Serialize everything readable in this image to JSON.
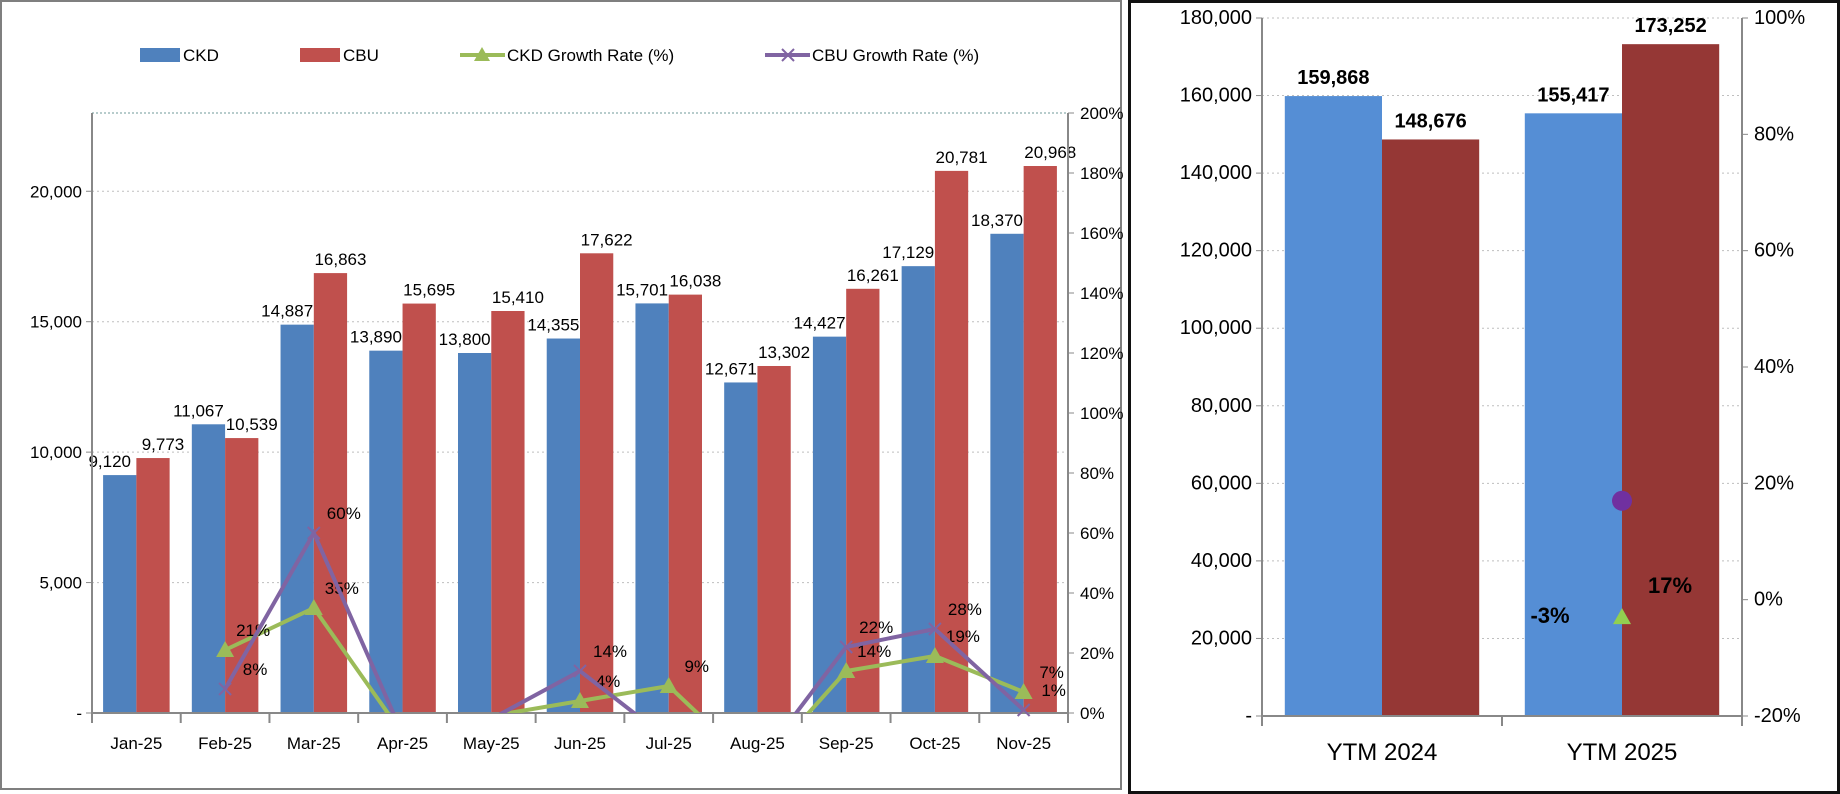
{
  "chart_data": [
    {
      "type": "bar",
      "categories": [
        "Jan-25",
        "Feb-25",
        "Mar-25",
        "Apr-25",
        "May-25",
        "Jun-25",
        "Jul-25",
        "Aug-25",
        "Sep-25",
        "Oct-25",
        "Nov-25"
      ],
      "series": [
        {
          "name": "CKD",
          "kind": "bar",
          "axis": "left",
          "color": "#4F81BD",
          "values": [
            9120,
            11067,
            14887,
            13890,
            13800,
            14355,
            15701,
            12671,
            14427,
            17129,
            18370
          ],
          "labels": [
            "9,120",
            "11,067",
            "14,887",
            "13,890",
            "13,800",
            "14,355",
            "15,701",
            "12,671",
            "14,427",
            "17,129",
            "18,370"
          ]
        },
        {
          "name": "CBU",
          "kind": "bar",
          "axis": "left",
          "color": "#C0504D",
          "values": [
            9773,
            10539,
            16863,
            15695,
            15410,
            17622,
            16038,
            13302,
            16261,
            20781,
            20968
          ],
          "labels": [
            "9,773",
            "10,539",
            "16,863",
            "15,695",
            "15,410",
            "17,622",
            "16,038",
            "13,302",
            "16,261",
            "20,781",
            "20,968"
          ]
        },
        {
          "name": "CKD Growth Rate (%)",
          "kind": "line",
          "axis": "right",
          "color": "#9BBB59",
          "marker": "triangle",
          "values": [
            null,
            21,
            35,
            -7,
            -1,
            4,
            9,
            -19,
            14,
            19,
            7
          ],
          "labels": [
            "",
            "21%",
            "35%",
            "",
            "",
            "4%",
            "9%",
            "",
            "14%",
            "19%",
            "7%"
          ]
        },
        {
          "name": "CBU Growth Rate (%)",
          "kind": "line",
          "axis": "right",
          "color": "#8064A2",
          "marker": "x",
          "values": [
            null,
            8,
            60,
            -7,
            -2,
            14,
            -9,
            -17,
            22,
            28,
            1
          ],
          "labels": [
            "",
            "8%",
            "60%",
            "",
            "",
            "14%",
            "",
            "",
            "22%",
            "28%",
            "1%"
          ]
        }
      ],
      "left_axis": {
        "ylim": [
          0,
          23000
        ],
        "ticks": [
          0,
          5000,
          10000,
          15000,
          20000
        ],
        "tick_labels": [
          "-",
          "5,000",
          "10,000",
          "15,000",
          "20,000"
        ]
      },
      "right_axis": {
        "ylim": [
          0,
          200
        ],
        "ticks": [
          0,
          20,
          40,
          60,
          80,
          100,
          120,
          140,
          160,
          180,
          200
        ],
        "tick_labels": [
          "0%",
          "20%",
          "40%",
          "60%",
          "80%",
          "100%",
          "120%",
          "140%",
          "160%",
          "180%",
          "200%"
        ]
      },
      "grid": "horizontal dotted",
      "legend": "top"
    },
    {
      "type": "bar",
      "categories": [
        "YTM 2024",
        "YTM 2025"
      ],
      "series": [
        {
          "name": "CKD",
          "kind": "bar",
          "axis": "left",
          "color": "#558ED5",
          "values": [
            159868,
            155417
          ],
          "labels": [
            "159,868",
            "155,417"
          ]
        },
        {
          "name": "CBU",
          "kind": "bar",
          "axis": "left",
          "color": "#953735",
          "values": [
            148676,
            173252
          ],
          "labels": [
            "148,676",
            "173,252"
          ]
        },
        {
          "name": "CKD Growth Rate (%)",
          "kind": "point",
          "axis": "right",
          "color": "#92D050",
          "marker": "triangle",
          "values": [
            null,
            -3
          ],
          "labels": [
            "",
            "-3%"
          ]
        },
        {
          "name": "CBU Growth Rate (%)",
          "kind": "point",
          "axis": "right",
          "color": "#7030A0",
          "marker": "circle",
          "values": [
            null,
            17
          ],
          "labels": [
            "",
            "17%"
          ]
        }
      ],
      "left_axis": {
        "ylim": [
          0,
          180000
        ],
        "ticks": [
          0,
          20000,
          40000,
          60000,
          80000,
          100000,
          120000,
          140000,
          160000,
          180000
        ],
        "tick_labels": [
          "-",
          "20,000",
          "40,000",
          "60,000",
          "80,000",
          "100,000",
          "120,000",
          "140,000",
          "160,000",
          "180,000"
        ]
      },
      "right_axis": {
        "ylim": [
          -20,
          100
        ],
        "ticks": [
          -20,
          0,
          20,
          40,
          60,
          80,
          100
        ],
        "tick_labels": [
          "-20%",
          "0%",
          "20%",
          "40%",
          "60%",
          "80%",
          "100%"
        ]
      },
      "grid": "horizontal dotted",
      "legend": "none"
    }
  ]
}
